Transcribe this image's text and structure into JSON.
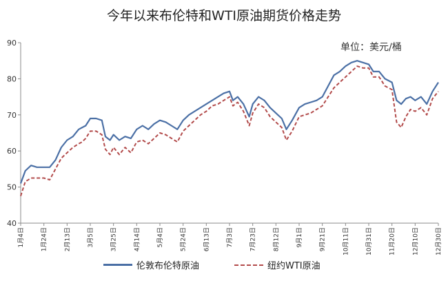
{
  "header": {
    "title": "今年以来布伦特和WTI原油期货价格走势",
    "unit": "单位：美元/桶"
  },
  "colors": {
    "brent": "#4a6fa5",
    "wti": "#b24a4a",
    "axis": "#888888"
  },
  "chart_data": {
    "type": "line",
    "title": "今年以来布伦特和WTI原油期货价格走势",
    "ylabel": "",
    "xlabel": "",
    "ylim": [
      40,
      90
    ],
    "yticks": [
      40,
      50,
      60,
      70,
      80,
      90
    ],
    "xticks": [
      "1月4日",
      "1月24日",
      "2月13日",
      "3月5日",
      "3月25日",
      "4月14日",
      "5月4日",
      "5月24日",
      "6月13日",
      "7月3日",
      "7月23日",
      "8月12日",
      "9月1日",
      "9月21日",
      "10月11日",
      "10月31日",
      "11月20日",
      "12月10日",
      "12月30日"
    ],
    "x": [
      "2021-01-04",
      "2021-01-08",
      "2021-01-13",
      "2021-01-18",
      "2021-01-24",
      "2021-01-29",
      "2021-02-03",
      "2021-02-08",
      "2021-02-13",
      "2021-02-18",
      "2021-02-23",
      "2021-02-26",
      "2021-03-01",
      "2021-03-05",
      "2021-03-10",
      "2021-03-15",
      "2021-03-18",
      "2021-03-22",
      "2021-03-25",
      "2021-03-30",
      "2021-04-04",
      "2021-04-09",
      "2021-04-14",
      "2021-04-19",
      "2021-04-24",
      "2021-04-29",
      "2021-05-04",
      "2021-05-09",
      "2021-05-14",
      "2021-05-19",
      "2021-05-24",
      "2021-05-29",
      "2021-06-03",
      "2021-06-08",
      "2021-06-13",
      "2021-06-18",
      "2021-06-23",
      "2021-06-28",
      "2021-07-03",
      "2021-07-06",
      "2021-07-10",
      "2021-07-15",
      "2021-07-20",
      "2021-07-23",
      "2021-07-28",
      "2021-08-02",
      "2021-08-07",
      "2021-08-12",
      "2021-08-17",
      "2021-08-21",
      "2021-08-26",
      "2021-09-01",
      "2021-09-06",
      "2021-09-11",
      "2021-09-16",
      "2021-09-21",
      "2021-09-26",
      "2021-10-01",
      "2021-10-06",
      "2021-10-11",
      "2021-10-16",
      "2021-10-21",
      "2021-10-26",
      "2021-10-31",
      "2021-11-04",
      "2021-11-09",
      "2021-11-14",
      "2021-11-20",
      "2021-11-24",
      "2021-11-28",
      "2021-12-02",
      "2021-12-06",
      "2021-12-10",
      "2021-12-15",
      "2021-12-20",
      "2021-12-25",
      "2021-12-30"
    ],
    "series": [
      {
        "name": "伦敦布伦特原油",
        "style": "solid",
        "values": [
          51,
          54.5,
          56,
          55.5,
          55.5,
          55.5,
          57.5,
          61,
          63,
          64,
          66,
          66.5,
          67,
          69,
          69,
          68.5,
          64,
          63,
          64.5,
          63,
          64,
          63.5,
          66,
          67,
          66,
          67.5,
          68.5,
          68,
          67,
          66,
          68.5,
          70,
          71,
          72,
          73,
          74,
          75,
          76,
          76.5,
          74,
          75,
          73,
          69.5,
          73,
          75,
          74,
          72,
          70.5,
          69,
          66,
          68.5,
          72,
          73,
          73.5,
          74,
          75,
          78,
          81,
          82,
          83.5,
          84.5,
          85,
          84.5,
          84,
          82,
          82,
          80,
          79,
          74,
          73,
          74.5,
          75,
          74,
          75,
          73,
          76.5,
          79
        ]
      },
      {
        "name": "纽约WTI原油",
        "style": "dashed",
        "values": [
          47.5,
          51.5,
          52.5,
          52.5,
          52.5,
          52,
          55,
          58,
          59.5,
          61,
          62,
          62.5,
          63.5,
          65.5,
          65.5,
          64.5,
          60.5,
          59,
          61,
          59,
          61,
          59.5,
          62.5,
          63,
          62,
          63.5,
          65,
          64.5,
          63.5,
          62.5,
          65.5,
          67,
          68.5,
          70,
          71,
          72.5,
          73,
          74,
          75,
          72.5,
          73.5,
          71,
          67,
          70.5,
          73,
          72,
          69.5,
          68,
          66.5,
          63,
          65.5,
          69.5,
          70,
          70.5,
          71.5,
          72.5,
          75,
          77.5,
          79,
          80.5,
          82,
          83.5,
          83,
          83,
          80.5,
          80.5,
          78,
          77,
          68,
          66.5,
          69.5,
          71.5,
          71,
          72,
          70,
          74.5,
          76.5
        ]
      }
    ],
    "grid": false,
    "legend": "bottom"
  },
  "legend": {
    "brent_label": "伦敦布伦特原油",
    "wti_label": "纽约WTI原油"
  }
}
